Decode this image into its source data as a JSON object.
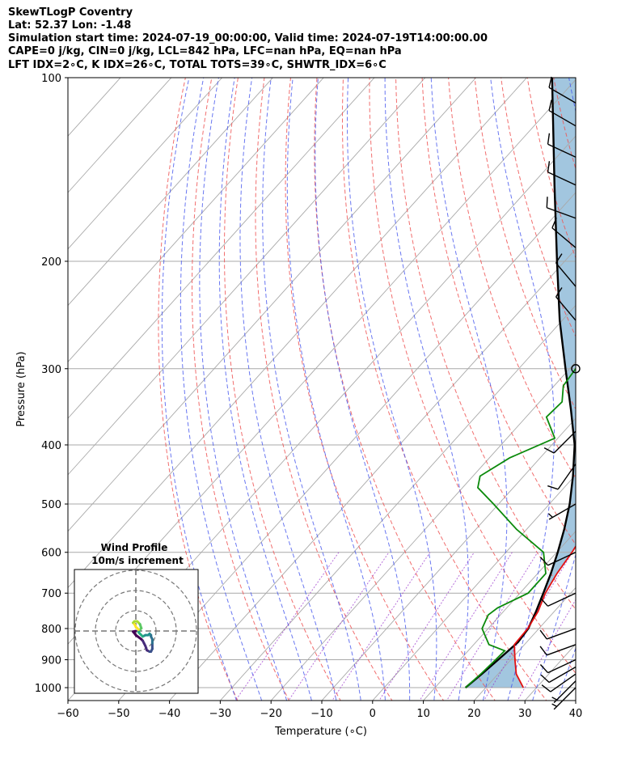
{
  "header": {
    "line1": "SkewTLogP Coventry",
    "line2": "Lat: 52.37   Lon: -1.48",
    "line3": "Simulation start time: 2024-07-19_00:00:00, Valid time: 2024-07-19T14:00:00.00",
    "line4": "CAPE=0 j/kg, CIN=0 j/kg, LCL=842 hPa, LFC=nan hPa, EQ=nan hPa",
    "line5": "LFT IDX=2∘C, K IDX=26∘C, TOTAL TOTS=39∘C, SHWTR_IDX=6∘C"
  },
  "chart_data": {
    "type": "skew-t log-p",
    "xlabel": "Temperature (∘C)",
    "ylabel": "Pressure (hPa)",
    "xlim": [
      -60,
      40
    ],
    "ylim": [
      1050,
      100
    ],
    "x_ticks": [
      -60,
      -50,
      -40,
      -30,
      -20,
      -10,
      0,
      10,
      20,
      30,
      40
    ],
    "x_tick_labels": [
      "−60",
      "−50",
      "−40",
      "−30",
      "−20",
      "−10",
      "0",
      "10",
      "20",
      "30",
      "40"
    ],
    "y_ticks": [
      1000,
      900,
      800,
      700,
      600,
      500,
      400,
      300,
      200,
      100
    ],
    "y_tick_labels": [
      "1000",
      "900",
      "800",
      "700",
      "600",
      "500",
      "400",
      "300",
      "200",
      "100"
    ],
    "grid": true,
    "colors": {
      "temperature": "#e41010",
      "dewpoint": "#0b8a0b",
      "parcel": "#000000",
      "cape_fill": "#a2c6df",
      "dry_adiabat": "#ee5555",
      "moist_adiabat": "#4455ee",
      "mixing_ratio": "#9933cc",
      "isotherm": "#a9a9a9"
    },
    "temperature": {
      "p": [
        1000,
        950,
        900,
        850,
        800,
        750,
        700,
        650,
        600,
        550,
        500,
        450,
        400,
        380,
        350,
        300,
        250,
        220,
        200,
        180,
        160,
        150,
        140,
        130,
        120,
        110,
        100
      ],
      "t": [
        27.4,
        23.6,
        20.8,
        18.0,
        17.8,
        16.8,
        15.0,
        13.8,
        13.0,
        11.8,
        9.2,
        5.8,
        1.8,
        -0.6,
        -3.2,
        -9.0,
        -16.4,
        -21.6,
        -25.0,
        -26.8,
        -27.4,
        -26.0,
        -25.0,
        -24.2,
        -22.2,
        -21.0,
        -18.8
      ]
    },
    "dewpoint": {
      "p": [
        1000,
        950,
        900,
        870,
        850,
        800,
        760,
        740,
        700,
        650,
        600,
        550,
        500,
        470,
        450,
        420,
        390,
        360,
        340,
        320,
        300,
        280,
        265,
        250,
        230,
        210,
        200,
        190,
        180,
        170,
        160,
        150,
        140,
        130,
        120,
        100
      ],
      "t": [
        16.0,
        16.6,
        17.0,
        17.2,
        13.0,
        8.8,
        7.6,
        8.2,
        11.6,
        11.6,
        7.4,
        -2.0,
        -11.0,
        -17.0,
        -18.6,
        -16.0,
        -10.6,
        -16.0,
        -15.6,
        -18.2,
        -18.8,
        -17.0,
        -17.8,
        -19.8,
        -21.2,
        -24.0,
        -26.0,
        -26.4,
        -26.0,
        -25.6,
        -30.0,
        -31.6,
        -37.6,
        -36.2,
        -35.2,
        -28.6
      ]
    },
    "parcel": {
      "p": [
        1000,
        950,
        900,
        842,
        800,
        750,
        700,
        650,
        600,
        550,
        500,
        450,
        400,
        350,
        300,
        250,
        200,
        150,
        100
      ],
      "t": [
        16.0,
        16.8,
        17.5,
        18.3,
        17.9,
        16.4,
        14.6,
        12.6,
        10.2,
        7.4,
        4.0,
        -0.3,
        -5.5,
        -12.5,
        -20.8,
        -30.5,
        -41.5,
        -55.5,
        -75.0
      ]
    },
    "winds": [
      {
        "p": 1000,
        "speed_kt": 8,
        "dir_deg": 225
      },
      {
        "p": 975,
        "speed_kt": 8,
        "dir_deg": 225
      },
      {
        "p": 950,
        "speed_kt": 10,
        "dir_deg": 235
      },
      {
        "p": 925,
        "speed_kt": 10,
        "dir_deg": 240
      },
      {
        "p": 900,
        "speed_kt": 12,
        "dir_deg": 245
      },
      {
        "p": 850,
        "speed_kt": 14,
        "dir_deg": 250
      },
      {
        "p": 800,
        "speed_kt": 12,
        "dir_deg": 250
      },
      {
        "p": 700,
        "speed_kt": 12,
        "dir_deg": 245
      },
      {
        "p": 600,
        "speed_kt": 12,
        "dir_deg": 245
      },
      {
        "p": 500,
        "speed_kt": 8,
        "dir_deg": 240
      },
      {
        "p": 430,
        "speed_kt": 10,
        "dir_deg": 215
      },
      {
        "p": 380,
        "speed_kt": 10,
        "dir_deg": 225
      },
      {
        "p": 300,
        "speed_kt": 0,
        "dir_deg": 0
      },
      {
        "p": 250,
        "speed_kt": 10,
        "dir_deg": 320
      },
      {
        "p": 220,
        "speed_kt": 10,
        "dir_deg": 320
      },
      {
        "p": 190,
        "speed_kt": 12,
        "dir_deg": 310
      },
      {
        "p": 170,
        "speed_kt": 14,
        "dir_deg": 290
      },
      {
        "p": 150,
        "speed_kt": 14,
        "dir_deg": 295
      },
      {
        "p": 135,
        "speed_kt": 14,
        "dir_deg": 295
      },
      {
        "p": 120,
        "speed_kt": 14,
        "dir_deg": 300
      },
      {
        "p": 110,
        "speed_kt": 14,
        "dir_deg": 300
      }
    ],
    "inset": {
      "title": "Wind Profile",
      "subtitle": "10m/s increment",
      "rings_ms": [
        10,
        20,
        30
      ],
      "hodograph": [
        [
          0,
          0
        ],
        [
          -2,
          0.5
        ],
        [
          0,
          3
        ],
        [
          4,
          6
        ],
        [
          5,
          7
        ],
        [
          6,
          9
        ],
        [
          7,
          11
        ],
        [
          8,
          14
        ],
        [
          10,
          15
        ],
        [
          11,
          15
        ],
        [
          12,
          13
        ],
        [
          12,
          9
        ],
        [
          12,
          6
        ],
        [
          11,
          4
        ],
        [
          11,
          3
        ],
        [
          10,
          2
        ],
        [
          9,
          3
        ],
        [
          7,
          3
        ],
        [
          5,
          4
        ],
        [
          4,
          3
        ],
        [
          3,
          2
        ],
        [
          2,
          1
        ],
        [
          3,
          -1
        ],
        [
          4,
          -2
        ],
        [
          3,
          -5
        ],
        [
          2,
          -6
        ],
        [
          1,
          -7
        ],
        [
          -1,
          -7
        ],
        [
          -2,
          -6
        ],
        [
          -1,
          -5
        ],
        [
          0,
          -3
        ],
        [
          1,
          -2
        ],
        [
          2,
          -1
        ]
      ]
    }
  }
}
